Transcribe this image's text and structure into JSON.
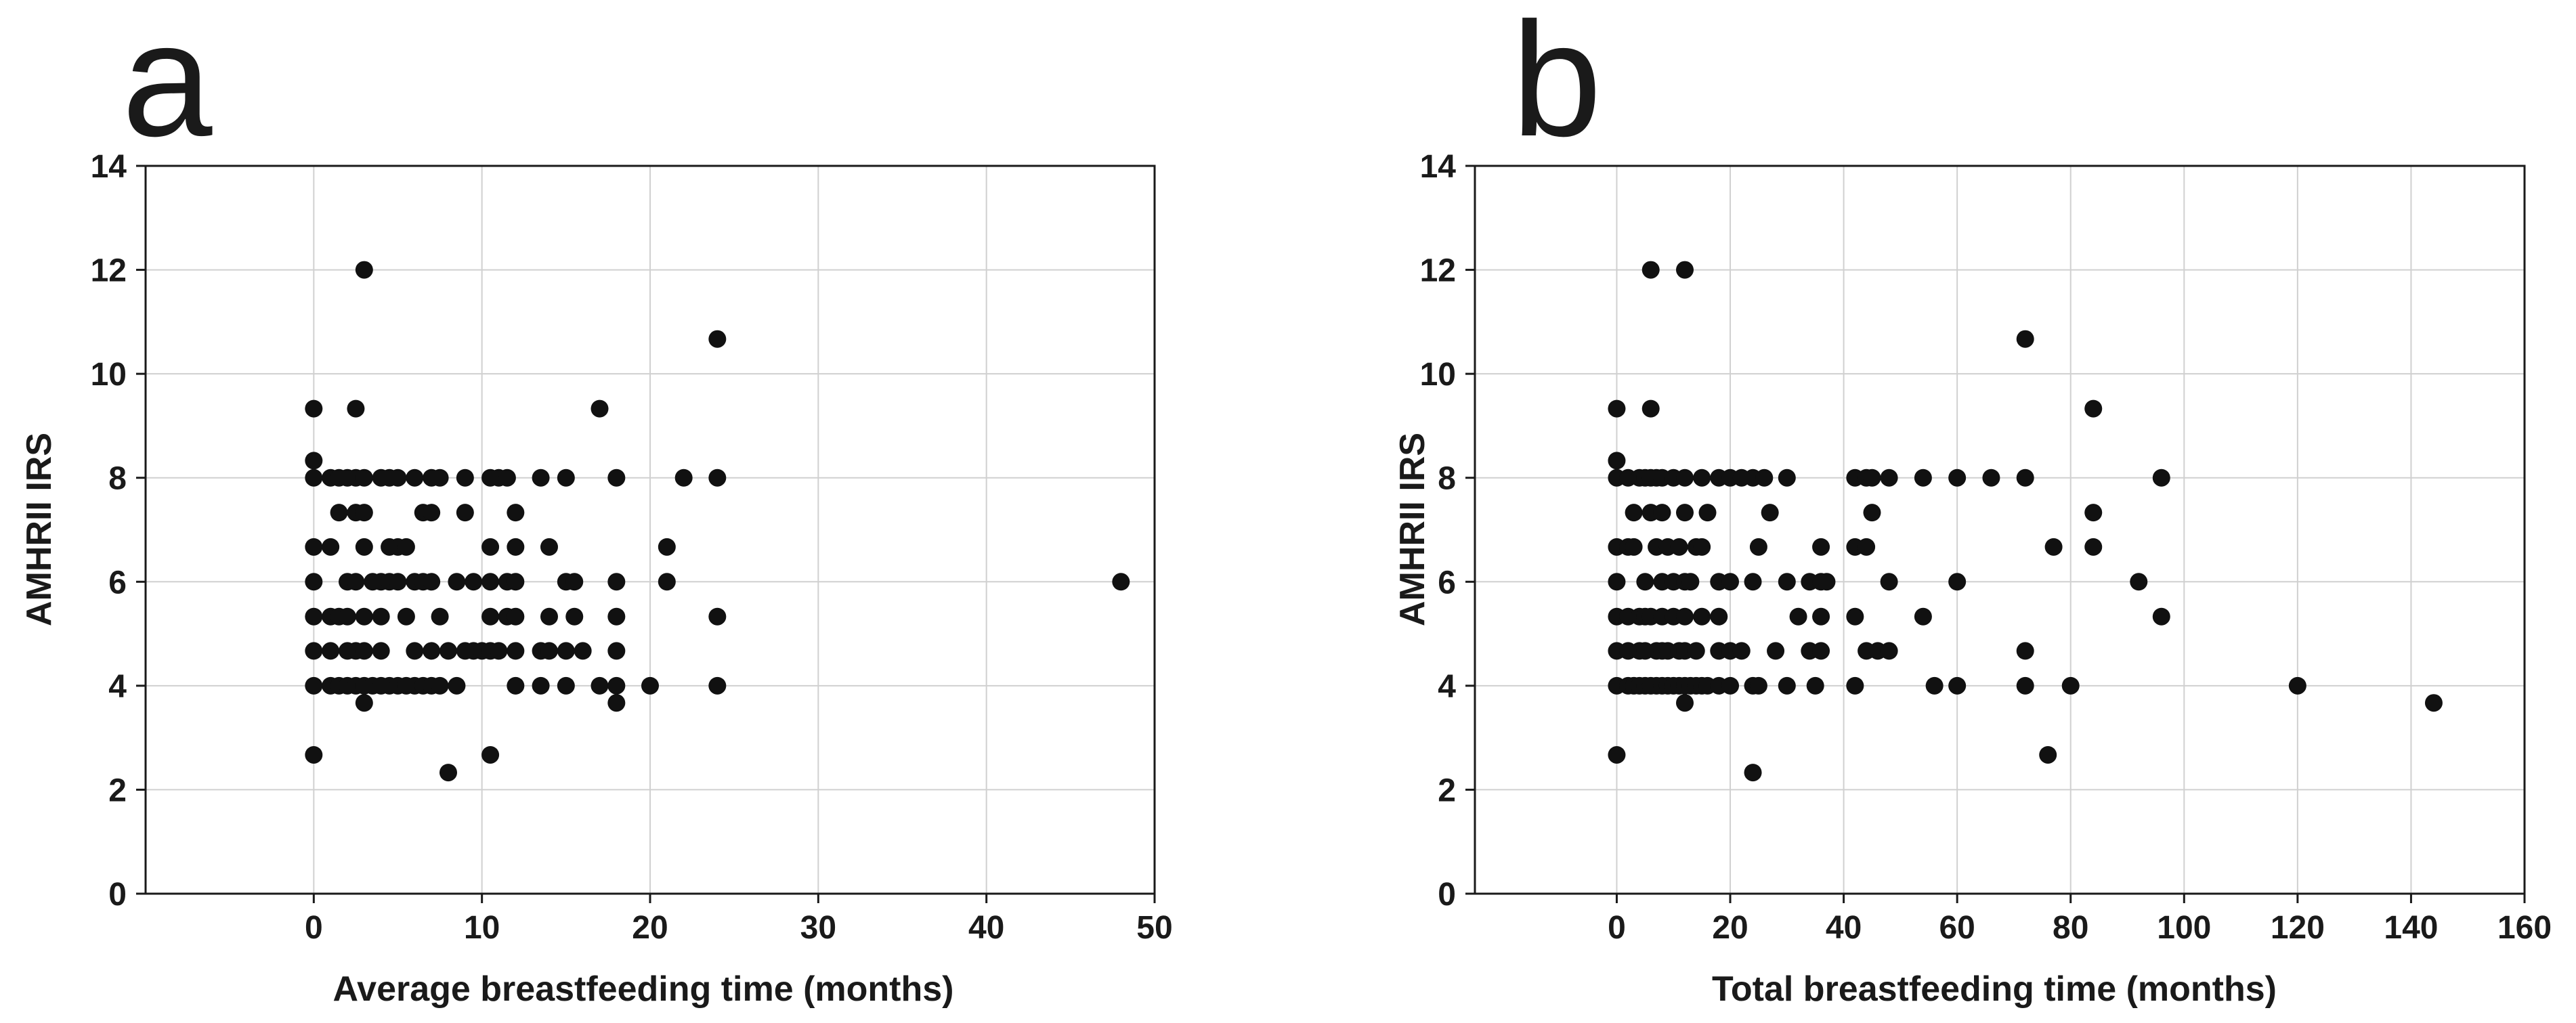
{
  "chart_data": [
    {
      "type": "scatter",
      "panel_label": "a",
      "xlabel": "Average breastfeeding time (months)",
      "ylabel": "AMHRII IRS",
      "xlim": [
        -10,
        50
      ],
      "ylim": [
        0,
        14
      ],
      "xticks": [
        0,
        10,
        20,
        30,
        40,
        50
      ],
      "yticks": [
        0,
        2,
        4,
        6,
        8,
        10,
        12,
        14
      ],
      "grid": true,
      "points": [
        [
          0,
          9.33
        ],
        [
          0,
          8.33
        ],
        [
          0,
          8
        ],
        [
          0,
          6.67
        ],
        [
          0,
          6
        ],
        [
          0,
          5.33
        ],
        [
          0,
          4.67
        ],
        [
          0,
          4
        ],
        [
          0,
          2.67
        ],
        [
          1,
          8
        ],
        [
          1,
          6.67
        ],
        [
          1,
          5.33
        ],
        [
          1,
          4.67
        ],
        [
          1,
          4
        ],
        [
          1.5,
          8
        ],
        [
          1.5,
          7.33
        ],
        [
          1.5,
          5.33
        ],
        [
          1.5,
          4
        ],
        [
          2,
          8
        ],
        [
          2,
          6
        ],
        [
          2,
          5.33
        ],
        [
          2,
          4.67
        ],
        [
          2,
          4
        ],
        [
          2.5,
          9.33
        ],
        [
          2.5,
          8
        ],
        [
          2.5,
          7.33
        ],
        [
          2.5,
          6
        ],
        [
          2.5,
          4.67
        ],
        [
          2.5,
          4
        ],
        [
          3,
          12
        ],
        [
          3,
          8
        ],
        [
          3,
          7.33
        ],
        [
          3,
          6.67
        ],
        [
          3,
          5.33
        ],
        [
          3,
          4.67
        ],
        [
          3,
          4
        ],
        [
          3,
          3.67
        ],
        [
          3.5,
          6
        ],
        [
          3.5,
          4
        ],
        [
          4,
          8
        ],
        [
          4,
          6
        ],
        [
          4,
          5.33
        ],
        [
          4,
          4.67
        ],
        [
          4,
          4
        ],
        [
          4.5,
          8
        ],
        [
          4.5,
          6.67
        ],
        [
          4.5,
          6
        ],
        [
          4.5,
          4
        ],
        [
          5,
          8
        ],
        [
          5,
          6.67
        ],
        [
          5,
          6
        ],
        [
          5,
          4
        ],
        [
          5.5,
          6.67
        ],
        [
          5.5,
          5.33
        ],
        [
          5.5,
          4
        ],
        [
          6,
          8
        ],
        [
          6,
          6
        ],
        [
          6,
          4.67
        ],
        [
          6,
          4
        ],
        [
          6.5,
          7.33
        ],
        [
          6.5,
          6
        ],
        [
          6.5,
          4
        ],
        [
          7,
          8
        ],
        [
          7,
          7.33
        ],
        [
          7,
          6
        ],
        [
          7,
          4.67
        ],
        [
          7,
          4
        ],
        [
          7.5,
          8
        ],
        [
          7.5,
          5.33
        ],
        [
          7.5,
          4
        ],
        [
          8,
          2.33
        ],
        [
          8,
          4.67
        ],
        [
          8.5,
          6
        ],
        [
          8.5,
          4
        ],
        [
          9,
          8
        ],
        [
          9,
          7.33
        ],
        [
          9,
          4.67
        ],
        [
          9.5,
          6
        ],
        [
          9.5,
          4.67
        ],
        [
          10,
          4.67
        ],
        [
          10.5,
          8
        ],
        [
          10.5,
          6.67
        ],
        [
          10.5,
          6
        ],
        [
          10.5,
          5.33
        ],
        [
          10.5,
          4.67
        ],
        [
          10.5,
          2.67
        ],
        [
          11,
          8
        ],
        [
          11,
          4.67
        ],
        [
          11.5,
          8
        ],
        [
          11.5,
          6
        ],
        [
          11.5,
          5.33
        ],
        [
          12,
          7.33
        ],
        [
          12,
          6.67
        ],
        [
          12,
          6
        ],
        [
          12,
          5.33
        ],
        [
          12,
          4.67
        ],
        [
          12,
          4
        ],
        [
          13.5,
          8
        ],
        [
          13.5,
          4.67
        ],
        [
          13.5,
          4
        ],
        [
          14,
          6.67
        ],
        [
          14,
          5.33
        ],
        [
          14,
          4.67
        ],
        [
          15,
          8
        ],
        [
          15,
          6
        ],
        [
          15,
          4.67
        ],
        [
          15,
          4
        ],
        [
          15.5,
          6
        ],
        [
          15.5,
          5.33
        ],
        [
          16,
          4.67
        ],
        [
          17,
          9.33
        ],
        [
          17,
          4
        ],
        [
          18,
          8
        ],
        [
          18,
          6
        ],
        [
          18,
          5.33
        ],
        [
          18,
          4.67
        ],
        [
          18,
          4
        ],
        [
          18,
          3.67
        ],
        [
          20,
          4
        ],
        [
          21,
          6.67
        ],
        [
          21,
          6
        ],
        [
          22,
          8
        ],
        [
          24,
          10.67
        ],
        [
          24,
          8
        ],
        [
          24,
          5.33
        ],
        [
          24,
          4
        ],
        [
          48,
          6
        ]
      ]
    },
    {
      "type": "scatter",
      "panel_label": "b",
      "xlabel": "Total breastfeeding time (months)",
      "ylabel": "AMHRII IRS",
      "xlim": [
        -25,
        160
      ],
      "ylim": [
        0,
        14
      ],
      "xticks": [
        0,
        20,
        40,
        60,
        80,
        100,
        120,
        140,
        160
      ],
      "yticks": [
        0,
        2,
        4,
        6,
        8,
        10,
        12,
        14
      ],
      "grid": true,
      "points": [
        [
          0,
          9.33
        ],
        [
          0,
          8.33
        ],
        [
          0,
          8
        ],
        [
          0,
          6.67
        ],
        [
          0,
          6
        ],
        [
          0,
          5.33
        ],
        [
          0,
          4.67
        ],
        [
          0,
          4
        ],
        [
          0,
          2.67
        ],
        [
          2,
          8
        ],
        [
          2,
          6.67
        ],
        [
          2,
          5.33
        ],
        [
          2,
          4.67
        ],
        [
          2,
          4
        ],
        [
          3,
          7.33
        ],
        [
          3,
          6.67
        ],
        [
          3,
          4
        ],
        [
          4,
          8
        ],
        [
          4,
          5.33
        ],
        [
          4,
          4.67
        ],
        [
          4,
          4
        ],
        [
          5,
          8
        ],
        [
          5,
          6
        ],
        [
          5,
          5.33
        ],
        [
          5,
          4.67
        ],
        [
          5,
          4
        ],
        [
          6,
          12
        ],
        [
          6,
          9.33
        ],
        [
          6,
          8
        ],
        [
          6,
          7.33
        ],
        [
          6,
          5.33
        ],
        [
          6,
          4
        ],
        [
          7,
          8
        ],
        [
          7,
          6.67
        ],
        [
          7,
          4.67
        ],
        [
          7,
          4
        ],
        [
          8,
          8
        ],
        [
          8,
          7.33
        ],
        [
          8,
          6
        ],
        [
          8,
          5.33
        ],
        [
          8,
          4.67
        ],
        [
          8,
          4
        ],
        [
          9,
          6.67
        ],
        [
          9,
          4.67
        ],
        [
          9,
          4
        ],
        [
          10,
          8
        ],
        [
          10,
          6
        ],
        [
          10,
          5.33
        ],
        [
          10,
          4
        ],
        [
          11,
          6.67
        ],
        [
          11,
          4.67
        ],
        [
          11,
          4
        ],
        [
          12,
          12
        ],
        [
          12,
          8
        ],
        [
          12,
          7.33
        ],
        [
          12,
          6
        ],
        [
          12,
          5.33
        ],
        [
          12,
          4.67
        ],
        [
          12,
          4
        ],
        [
          12,
          3.67
        ],
        [
          13,
          6
        ],
        [
          13,
          4
        ],
        [
          14,
          6.67
        ],
        [
          14,
          4.67
        ],
        [
          14,
          4
        ],
        [
          15,
          8
        ],
        [
          15,
          6.67
        ],
        [
          15,
          5.33
        ],
        [
          15,
          4
        ],
        [
          16,
          7.33
        ],
        [
          16,
          4
        ],
        [
          18,
          8
        ],
        [
          18,
          6
        ],
        [
          18,
          5.33
        ],
        [
          18,
          4.67
        ],
        [
          18,
          4
        ],
        [
          20,
          8
        ],
        [
          20,
          6
        ],
        [
          20,
          4.67
        ],
        [
          20,
          4
        ],
        [
          22,
          8
        ],
        [
          22,
          4.67
        ],
        [
          24,
          8
        ],
        [
          24,
          6
        ],
        [
          24,
          4
        ],
        [
          24,
          2.33
        ],
        [
          25,
          6.67
        ],
        [
          25,
          4
        ],
        [
          26,
          8
        ],
        [
          27,
          7.33
        ],
        [
          28,
          4.67
        ],
        [
          30,
          8
        ],
        [
          30,
          6
        ],
        [
          30,
          4
        ],
        [
          32,
          5.33
        ],
        [
          34,
          6
        ],
        [
          34,
          4.67
        ],
        [
          35,
          4
        ],
        [
          36,
          6.67
        ],
        [
          36,
          6
        ],
        [
          36,
          5.33
        ],
        [
          36,
          4.67
        ],
        [
          37,
          6
        ],
        [
          42,
          8
        ],
        [
          42,
          6.67
        ],
        [
          42,
          5.33
        ],
        [
          42,
          4
        ],
        [
          44,
          8
        ],
        [
          44,
          6.67
        ],
        [
          44,
          4.67
        ],
        [
          45,
          8
        ],
        [
          45,
          7.33
        ],
        [
          46,
          4.67
        ],
        [
          48,
          8
        ],
        [
          48,
          6
        ],
        [
          48,
          4.67
        ],
        [
          54,
          8
        ],
        [
          54,
          5.33
        ],
        [
          56,
          4
        ],
        [
          60,
          8
        ],
        [
          60,
          6
        ],
        [
          60,
          4
        ],
        [
          66,
          8
        ],
        [
          72,
          10.67
        ],
        [
          72,
          8
        ],
        [
          72,
          4.67
        ],
        [
          72,
          4
        ],
        [
          76,
          2.67
        ],
        [
          77,
          6.67
        ],
        [
          80,
          4
        ],
        [
          84,
          9.33
        ],
        [
          84,
          7.33
        ],
        [
          84,
          6.67
        ],
        [
          92,
          6
        ],
        [
          96,
          8
        ],
        [
          96,
          5.33
        ],
        [
          120,
          4
        ],
        [
          144,
          3.67
        ]
      ]
    }
  ]
}
